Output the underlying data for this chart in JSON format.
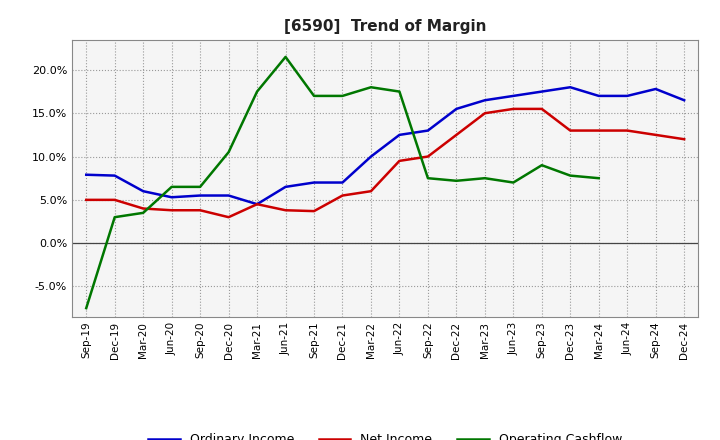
{
  "title": "[6590]  Trend of Margin",
  "x_labels": [
    "Sep-19",
    "Dec-19",
    "Mar-20",
    "Jun-20",
    "Sep-20",
    "Dec-20",
    "Mar-21",
    "Jun-21",
    "Sep-21",
    "Dec-21",
    "Mar-22",
    "Jun-22",
    "Sep-22",
    "Dec-22",
    "Mar-23",
    "Jun-23",
    "Sep-23",
    "Dec-23",
    "Mar-24",
    "Jun-24",
    "Sep-24",
    "Dec-24"
  ],
  "ordinary_income": [
    7.9,
    7.8,
    6.0,
    5.3,
    5.5,
    5.5,
    4.5,
    6.5,
    7.0,
    7.0,
    10.0,
    12.5,
    13.0,
    15.5,
    16.5,
    17.0,
    17.5,
    18.0,
    17.0,
    17.0,
    17.8,
    16.5
  ],
  "net_income": [
    5.0,
    5.0,
    4.0,
    3.8,
    3.8,
    3.0,
    4.5,
    3.8,
    3.7,
    5.5,
    6.0,
    9.5,
    10.0,
    12.5,
    15.0,
    15.5,
    15.5,
    13.0,
    13.0,
    13.0,
    12.5,
    12.0
  ],
  "operating_cashflow": [
    -7.5,
    3.0,
    3.5,
    6.5,
    6.5,
    10.5,
    17.5,
    21.5,
    17.0,
    17.0,
    18.0,
    17.5,
    7.5,
    7.2,
    7.5,
    7.0,
    9.0,
    7.8,
    7.5,
    null,
    null,
    null
  ],
  "ylim": [
    -8.5,
    23.5
  ],
  "yticks": [
    -5.0,
    0.0,
    5.0,
    10.0,
    15.0,
    20.0
  ],
  "colors": {
    "ordinary_income": "#0000cc",
    "net_income": "#cc0000",
    "operating_cashflow": "#007700"
  },
  "background_color": "#ffffff",
  "plot_bg_color": "#f5f5f5",
  "grid_color": "#999999",
  "legend_labels": [
    "Ordinary Income",
    "Net Income",
    "Operating Cashflow"
  ]
}
